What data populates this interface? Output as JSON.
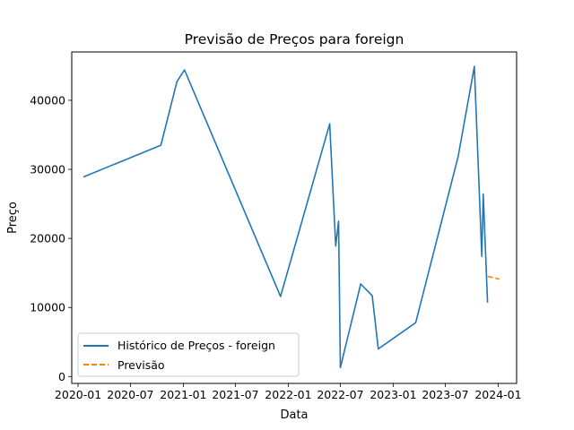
{
  "chart_data": {
    "type": "line",
    "title": "Previsão de Preços para foreign",
    "xlabel": "Data",
    "ylabel": "Preço",
    "x_tick_labels": [
      "2020-01",
      "2020-07",
      "2021-01",
      "2021-07",
      "2022-01",
      "2022-07",
      "2023-01",
      "2023-07",
      "2024-01"
    ],
    "y_ticks": [
      0,
      10000,
      20000,
      30000,
      40000
    ],
    "y_tick_labels": [
      "0",
      "10000",
      "20000",
      "30000",
      "40000"
    ],
    "xlim": [
      "2019-12-10",
      "2024-03-05"
    ],
    "ylim": [
      -1000,
      47000
    ],
    "grid": false,
    "legend_position": "lower-left",
    "series": [
      {
        "name": "Histórico de Preços - foreign",
        "color": "#1f77b4",
        "style": "solid",
        "points": [
          {
            "x": "2020-01-20",
            "y": 28900
          },
          {
            "x": "2020-10-15",
            "y": 33500
          },
          {
            "x": "2020-12-10",
            "y": 42700
          },
          {
            "x": "2021-01-05",
            "y": 44400
          },
          {
            "x": "2021-12-05",
            "y": 11600
          },
          {
            "x": "2022-05-25",
            "y": 36600
          },
          {
            "x": "2022-06-15",
            "y": 18900
          },
          {
            "x": "2022-06-25",
            "y": 22500
          },
          {
            "x": "2022-07-01",
            "y": 1300
          },
          {
            "x": "2022-09-10",
            "y": 13400
          },
          {
            "x": "2022-10-20",
            "y": 11700
          },
          {
            "x": "2022-11-10",
            "y": 4000
          },
          {
            "x": "2023-03-20",
            "y": 7800
          },
          {
            "x": "2023-08-15",
            "y": 31900
          },
          {
            "x": "2023-10-10",
            "y": 44900
          },
          {
            "x": "2023-11-05",
            "y": 17400
          },
          {
            "x": "2023-11-10",
            "y": 26400
          },
          {
            "x": "2023-11-25",
            "y": 10700
          }
        ]
      },
      {
        "name": "Previsão",
        "color": "#ff7f0e",
        "style": "dashed",
        "points": [
          {
            "x": "2023-11-25",
            "y": 14500
          },
          {
            "x": "2024-01-05",
            "y": 14100
          }
        ]
      }
    ]
  }
}
